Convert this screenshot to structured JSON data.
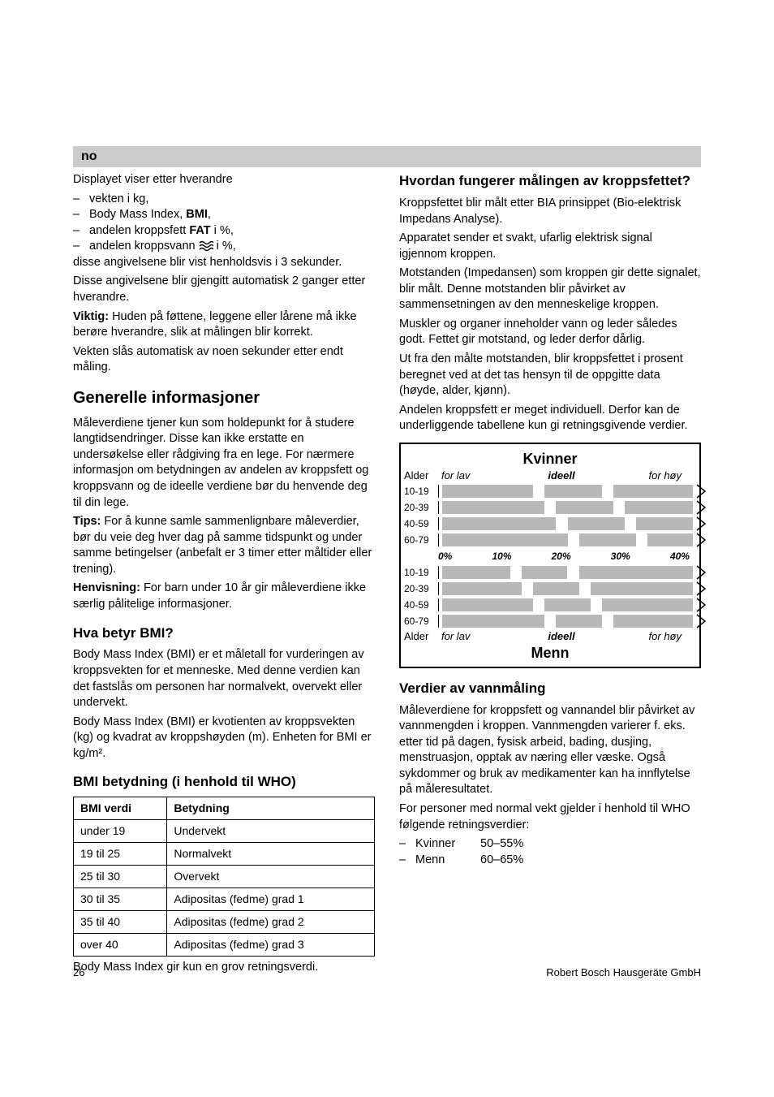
{
  "lang_bar": "no",
  "left": {
    "intro_line": "Displayet viser etter hverandre",
    "bullets": [
      {
        "t": "vekten i kg,",
        "strong": []
      },
      {
        "t": "Body Mass Index, ",
        "strong": [
          "BMI"
        ],
        "tail": ","
      },
      {
        "t": "andelen kroppsfett ",
        "strong": [
          "FAT"
        ],
        "tail": " i %,"
      },
      {
        "t": "andelen kroppsvann ",
        "icon": "water",
        "tail": " i %,"
      }
    ],
    "after_bullets": [
      "disse angivelsene blir vist henholdsvis i 3 sekunder.",
      "Disse angivelsene blir gjengitt automatisk 2 ganger etter hverandre."
    ],
    "viktig_label": "Viktig:",
    "viktig_text": " Huden på føttene, leggene eller lårene må ikke berøre hverandre, slik at målingen blir korrekt.",
    "auto_off": "Vekten slås automatisk av noen sekunder etter endt måling.",
    "h1": "Generelle informasjoner",
    "p1": "Måleverdiene tjener kun som holdepunkt for å studere langtidsendringer. Disse kan ikke erstatte en undersøkelse eller rådgiving fra en lege. For nærmere informasjon om betydningen av andelen av kroppsfett og kroppsvann og de ideelle verdiene bør du henvende deg til din lege.",
    "tips_label": "Tips:",
    "tips_text": " For å kunne samle sammenlignbare måleverdier, bør du veie deg hver dag på samme tidspunkt og under samme betingelser (anbefalt er 3 timer etter måltider eller trening).",
    "henv_label": "Henvisning:",
    "henv_text": " For barn under 10 år gir måleverdiene ikke særlig pålitelige informasjoner.",
    "h2_bmi": "Hva betyr BMI?",
    "bmi_p1": "Body Mass Index (BMI) er et måletall for vurderingen av kroppsvekten for et menneske. Med denne verdien kan det fastslås om personen har normalvekt, overvekt eller undervekt.",
    "bmi_p2": "Body Mass Index (BMI) er kvotienten av kroppsvekten (kg) og kvadrat av kroppshøyden (m). Enheten for BMI er kg/m².",
    "table_heading": "BMI betydning (i henhold til WHO)",
    "table": {
      "columns": [
        "BMI verdi",
        "Betydning"
      ],
      "rows": [
        [
          "under 19",
          "Undervekt"
        ],
        [
          "19 til 25",
          "Normalvekt"
        ],
        [
          "25 til 30",
          "Overvekt"
        ],
        [
          "30 til 35",
          "Adipositas (fedme) grad 1"
        ],
        [
          "35 til 40",
          "Adipositas (fedme) grad 2"
        ],
        [
          "over 40",
          "Adipositas (fedme) grad 3"
        ]
      ]
    },
    "table_note": "Body Mass Index gir kun en grov retningsverdi."
  },
  "right": {
    "h2_fat": "Hvordan fungerer målingen av kroppsfettet?",
    "fat_p": [
      "Kroppsfettet blir målt etter BIA prinsippet (Bio-elektrisk Impedans Analyse).",
      "Apparatet sender et svakt, ufarlig elektrisk signal igjennom kroppen.",
      "Motstanden (Impedansen) som kroppen gir dette signalet, blir målt. Denne motstanden blir påvirket av sammensetningen av den menneskelige kroppen.",
      "Muskler og organer inneholder vann og leder således godt. Fettet gir motstand, og leder derfor dårlig.",
      "Ut fra den målte motstanden, blir kroppsfettet i prosent beregnet ved at det tas hensyn til de oppgitte data (høyde, alder, kjønn).",
      "Andelen kroppsfett er meget individuell. Derfor kan de underliggende tabellene kun gi retningsgivende verdier."
    ],
    "chart": {
      "title_top": "Kvinner",
      "title_bottom": "Menn",
      "age_label": "Alder",
      "range_labels": [
        "for lav",
        "ideell",
        "for høy"
      ],
      "axis_ticks": [
        "0%",
        "10%",
        "20%",
        "30%",
        "40%"
      ],
      "ages": [
        "10-19",
        "20-39",
        "40-59",
        "60-79"
      ],
      "women": [
        {
          "low": [
            0,
            16
          ],
          "mid": [
            18,
            28
          ],
          "high": [
            30,
            44
          ]
        },
        {
          "low": [
            0,
            18
          ],
          "mid": [
            20,
            30
          ],
          "high": [
            32,
            44
          ]
        },
        {
          "low": [
            0,
            20
          ],
          "mid": [
            22,
            32
          ],
          "high": [
            34,
            44
          ]
        },
        {
          "low": [
            0,
            22
          ],
          "mid": [
            24,
            34
          ],
          "high": [
            36,
            44
          ]
        }
      ],
      "men": [
        {
          "low": [
            0,
            12
          ],
          "mid": [
            14,
            22
          ],
          "high": [
            24,
            44
          ]
        },
        {
          "low": [
            0,
            14
          ],
          "mid": [
            16,
            24
          ],
          "high": [
            26,
            44
          ]
        },
        {
          "low": [
            0,
            16
          ],
          "mid": [
            18,
            26
          ],
          "high": [
            28,
            44
          ]
        },
        {
          "low": [
            0,
            18
          ],
          "mid": [
            20,
            28
          ],
          "high": [
            30,
            44
          ]
        }
      ],
      "scale_max": 44,
      "bar_color": "#b8b8b8"
    },
    "h2_water": "Verdier av vannmåling",
    "water_p": "Måleverdiene for kroppsfett og vannandel blir påvirket av vannmengden i kroppen. Vannmengden varierer f. eks. etter tid på dagen, fysisk arbeid, bading, dusjing, menstruasjon, opptak av næring eller væske. Også sykdommer og bruk av medikamenter kan ha innflytelse på måleresultatet.",
    "water_guide_intro": "For personer med normal vekt gjelder i henhold til WHO følgende retningsverdier:",
    "water_rows": [
      {
        "l": "Kvinner",
        "v": "50–55%"
      },
      {
        "l": "Menn",
        "v": "60–65%"
      }
    ]
  },
  "footer": {
    "page": "26",
    "company": "Robert Bosch Hausgeräte GmbH"
  }
}
